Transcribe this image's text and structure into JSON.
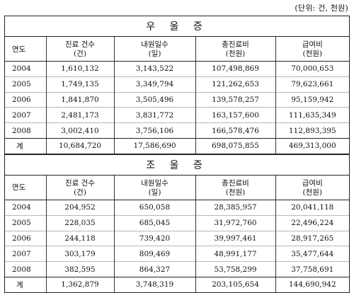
{
  "unit_note": "(단위: 건, 천원)",
  "headers": {
    "year": "연도",
    "claims_l1": "진료 건수",
    "claims_l2": "(건)",
    "days_l1": "내원일수",
    "days_l2": "(일)",
    "cost_l1": "총진료비",
    "cost_l2": "(천원)",
    "benefit_l1": "급여비",
    "benefit_l2": "(천원)"
  },
  "sections": [
    {
      "title": "우 울 증",
      "rows": [
        {
          "year": "2004",
          "claims": "1,610,132",
          "days": "3,143,522",
          "cost": "107,498,869",
          "benefit": "70,000,653"
        },
        {
          "year": "2005",
          "claims": "1,749,135",
          "days": "3,349,794",
          "cost": "121,262,653",
          "benefit": "79,623,661"
        },
        {
          "year": "2006",
          "claims": "1,841,870",
          "days": "3,505,496",
          "cost": "139,578,257",
          "benefit": "95,159,942"
        },
        {
          "year": "2007",
          "claims": "2,481,173",
          "days": "3,831,772",
          "cost": "163,157,600",
          "benefit": "111,635,349"
        },
        {
          "year": "2008",
          "claims": "3,002,410",
          "days": "3,756,106",
          "cost": "166,578,476",
          "benefit": "112,893,395"
        }
      ],
      "total": {
        "year": "계",
        "claims": "10,684,720",
        "days": "17,586,690",
        "cost": "698,075,855",
        "benefit": "469,313,000"
      }
    },
    {
      "title": "조 울 증",
      "rows": [
        {
          "year": "2004",
          "claims": "204,952",
          "days": "650,058",
          "cost": "28,385,957",
          "benefit": "20,041,118"
        },
        {
          "year": "2005",
          "claims": "228,035",
          "days": "685,045",
          "cost": "31,972,760",
          "benefit": "22,496,224"
        },
        {
          "year": "2006",
          "claims": "244,118",
          "days": "739,420",
          "cost": "39,997,461",
          "benefit": "28,917,265"
        },
        {
          "year": "2007",
          "claims": "303,179",
          "days": "809,469",
          "cost": "48,991,177",
          "benefit": "35,477,644"
        },
        {
          "year": "2008",
          "claims": "382,595",
          "days": "864,327",
          "cost": "53,758,299",
          "benefit": "37,758,691"
        }
      ],
      "total": {
        "year": "계",
        "claims": "1,362,879",
        "days": "3,748,319",
        "cost": "203,105,654",
        "benefit": "144,690,942"
      }
    }
  ]
}
